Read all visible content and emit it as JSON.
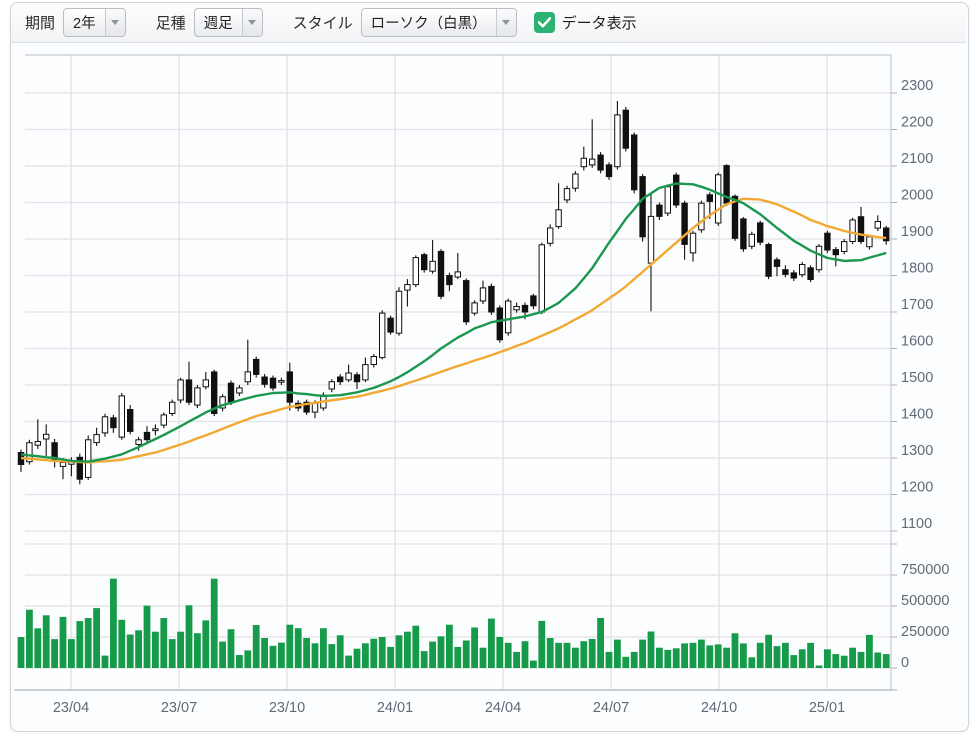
{
  "toolbar": {
    "period_label": "期間",
    "period_value": "2年",
    "bartype_label": "足種",
    "bartype_value": "週足",
    "style_label": "スタイル",
    "style_value": "ローソク（白黒）",
    "data_display_label": "データ表示",
    "data_display_checked": true
  },
  "colors": {
    "ma_short": "#1a9850",
    "ma_long": "#f2a832",
    "volume": "#169b4b",
    "candle_up_fill": "#ffffff",
    "candle_down_fill": "#111111",
    "candle_stroke": "#111111",
    "checkbox_green": "#2cb272",
    "grid": "#e2e3e6",
    "axis_border": "#c6cbd1",
    "axis_text": "#5f6b76"
  },
  "chart_data": {
    "type": "candlestick",
    "title": "",
    "x_labels": [
      "23/04",
      "23/07",
      "23/10",
      "24/01",
      "24/04",
      "24/07",
      "24/10",
      "25/01"
    ],
    "price_ticks": [
      2300,
      2200,
      2100,
      2000,
      1900,
      1800,
      1700,
      1600,
      1500,
      1400,
      1300,
      1200,
      1100
    ],
    "volume_ticks": [
      750000,
      500000,
      250000,
      0
    ],
    "price_range": [
      1100,
      2300
    ],
    "volume_range": [
      0,
      1000000
    ],
    "grid": true,
    "legend": "none",
    "series": [
      {
        "name": "price_ohlc",
        "type": "candlestick",
        "ohlc": [
          [
            1315,
            1323,
            1262,
            1282
          ],
          [
            1290,
            1350,
            1282,
            1342
          ],
          [
            1335,
            1406,
            1325,
            1345
          ],
          [
            1352,
            1392,
            1305,
            1365
          ],
          [
            1342,
            1352,
            1274,
            1296
          ],
          [
            1277,
            1300,
            1242,
            1288
          ],
          [
            1283,
            1302,
            1250,
            1290
          ],
          [
            1302,
            1312,
            1228,
            1242
          ],
          [
            1247,
            1362,
            1240,
            1350
          ],
          [
            1342,
            1383,
            1333,
            1364
          ],
          [
            1369,
            1421,
            1358,
            1413
          ],
          [
            1410,
            1418,
            1369,
            1383
          ],
          [
            1357,
            1478,
            1350,
            1470
          ],
          [
            1433,
            1445,
            1365,
            1373
          ],
          [
            1337,
            1358,
            1320,
            1350
          ],
          [
            1370,
            1387,
            1340,
            1350
          ],
          [
            1375,
            1392,
            1362,
            1380
          ],
          [
            1390,
            1425,
            1382,
            1418
          ],
          [
            1422,
            1460,
            1415,
            1453
          ],
          [
            1459,
            1520,
            1450,
            1514
          ],
          [
            1514,
            1564,
            1445,
            1453
          ],
          [
            1445,
            1500,
            1437,
            1492
          ],
          [
            1495,
            1536,
            1488,
            1514
          ],
          [
            1536,
            1542,
            1415,
            1422
          ],
          [
            1437,
            1475,
            1428,
            1468
          ],
          [
            1505,
            1512,
            1445,
            1453
          ],
          [
            1478,
            1500,
            1470,
            1492
          ],
          [
            1509,
            1624,
            1500,
            1536
          ],
          [
            1570,
            1578,
            1520,
            1529
          ],
          [
            1522,
            1530,
            1493,
            1502
          ],
          [
            1519,
            1526,
            1484,
            1492
          ],
          [
            1509,
            1520,
            1500,
            1512
          ],
          [
            1536,
            1561,
            1430,
            1453
          ],
          [
            1450,
            1458,
            1428,
            1437
          ],
          [
            1453,
            1460,
            1418,
            1426
          ],
          [
            1426,
            1458,
            1409,
            1450
          ],
          [
            1437,
            1480,
            1430,
            1472
          ],
          [
            1489,
            1516,
            1480,
            1509
          ],
          [
            1522,
            1530,
            1500,
            1509
          ],
          [
            1514,
            1556,
            1508,
            1533
          ],
          [
            1528,
            1535,
            1489,
            1509
          ],
          [
            1514,
            1575,
            1508,
            1556
          ],
          [
            1556,
            1585,
            1548,
            1578
          ],
          [
            1575,
            1705,
            1570,
            1697
          ],
          [
            1683,
            1690,
            1638,
            1645
          ],
          [
            1642,
            1768,
            1635,
            1757
          ],
          [
            1760,
            1790,
            1715,
            1775
          ],
          [
            1775,
            1855,
            1768,
            1849
          ],
          [
            1857,
            1862,
            1808,
            1816
          ],
          [
            1812,
            1897,
            1805,
            1839
          ],
          [
            1866,
            1872,
            1735,
            1743
          ],
          [
            1800,
            1808,
            1757,
            1775
          ],
          [
            1796,
            1862,
            1790,
            1810
          ],
          [
            1786,
            1792,
            1665,
            1673
          ],
          [
            1697,
            1732,
            1690,
            1725
          ],
          [
            1730,
            1786,
            1722,
            1766
          ],
          [
            1770,
            1778,
            1692,
            1700
          ],
          [
            1711,
            1718,
            1616,
            1624
          ],
          [
            1643,
            1737,
            1635,
            1730
          ],
          [
            1706,
            1726,
            1698,
            1715
          ],
          [
            1718,
            1726,
            1680,
            1700
          ],
          [
            1744,
            1750,
            1708,
            1717
          ],
          [
            1700,
            1890,
            1694,
            1884
          ],
          [
            1888,
            1940,
            1880,
            1930
          ],
          [
            1934,
            2053,
            1928,
            1980
          ],
          [
            2007,
            2046,
            1998,
            2038
          ],
          [
            2039,
            2086,
            2030,
            2078
          ],
          [
            2098,
            2153,
            2088,
            2121
          ],
          [
            2103,
            2228,
            2095,
            2119
          ],
          [
            2130,
            2138,
            2080,
            2089
          ],
          [
            2103,
            2110,
            2062,
            2071
          ],
          [
            2098,
            2278,
            2090,
            2240
          ],
          [
            2253,
            2262,
            2140,
            2149
          ],
          [
            2185,
            2192,
            2025,
            2035
          ],
          [
            2071,
            2078,
            1893,
            1906
          ],
          [
            1834,
            2026,
            1702,
            1962
          ],
          [
            1993,
            2000,
            1952,
            1962
          ],
          [
            1971,
            2050,
            1963,
            2043
          ],
          [
            2075,
            2082,
            1985,
            1993
          ],
          [
            1998,
            2005,
            1843,
            1885
          ],
          [
            1862,
            1922,
            1838,
            1916
          ],
          [
            1925,
            2005,
            1917,
            1998
          ],
          [
            2021,
            2028,
            1955,
            2003
          ],
          [
            1944,
            2082,
            1936,
            2076
          ],
          [
            2101,
            2105,
            1990,
            1998
          ],
          [
            2017,
            2022,
            1895,
            1902
          ],
          [
            1955,
            1960,
            1865,
            1873
          ],
          [
            1880,
            1920,
            1872,
            1913
          ],
          [
            1944,
            1950,
            1883,
            1891
          ],
          [
            1885,
            1890,
            1790,
            1798
          ],
          [
            1843,
            1850,
            1798,
            1825
          ],
          [
            1816,
            1828,
            1795,
            1803
          ],
          [
            1807,
            1815,
            1785,
            1793
          ],
          [
            1802,
            1837,
            1795,
            1830
          ],
          [
            1821,
            1828,
            1782,
            1789
          ],
          [
            1816,
            1886,
            1808,
            1880
          ],
          [
            1916,
            1922,
            1862,
            1870
          ],
          [
            1871,
            1878,
            1825,
            1857
          ],
          [
            1866,
            1900,
            1858,
            1893
          ],
          [
            1893,
            1958,
            1886,
            1952
          ],
          [
            1961,
            1988,
            1886,
            1893
          ],
          [
            1879,
            1912,
            1871,
            1906
          ],
          [
            1930,
            1965,
            1922,
            1948
          ],
          [
            1930,
            1936,
            1884,
            1895
          ]
        ]
      },
      {
        "name": "ma_short",
        "type": "line",
        "values": [
          1310,
          1307,
          1305,
          1302,
          1300,
          1296,
          1292,
          1291,
          1290,
          1294,
          1298,
          1304,
          1310,
          1320,
          1330,
          1341,
          1352,
          1363,
          1375,
          1387,
          1400,
          1412,
          1425,
          1435,
          1445,
          1451,
          1458,
          1464,
          1470,
          1474,
          1478,
          1479,
          1480,
          1477,
          1475,
          1472,
          1470,
          1471,
          1472,
          1476,
          1480,
          1486,
          1492,
          1501,
          1510,
          1522,
          1535,
          1550,
          1565,
          1582,
          1600,
          1615,
          1630,
          1642,
          1655,
          1663,
          1672,
          1676,
          1680,
          1684,
          1688,
          1694,
          1700,
          1712,
          1725,
          1745,
          1765,
          1792,
          1820,
          1855,
          1890,
          1922,
          1955,
          1982,
          2010,
          2025,
          2040,
          2046,
          2052,
          2051,
          2050,
          2043,
          2035,
          2025,
          2015,
          2007,
          1998,
          1983,
          1968,
          1949,
          1930,
          1913,
          1895,
          1882,
          1868,
          1858,
          1848,
          1844,
          1840,
          1841,
          1842,
          1849,
          1855,
          1862
        ]
      },
      {
        "name": "ma_long",
        "type": "line",
        "values": [
          1300,
          1298,
          1296,
          1294,
          1292,
          1291,
          1290,
          1289,
          1288,
          1290,
          1291,
          1293,
          1295,
          1300,
          1305,
          1310,
          1315,
          1322,
          1330,
          1337,
          1345,
          1354,
          1362,
          1371,
          1380,
          1389,
          1398,
          1406,
          1415,
          1421,
          1427,
          1434,
          1440,
          1444,
          1448,
          1451,
          1455,
          1458,
          1461,
          1465,
          1468,
          1473,
          1479,
          1484,
          1490,
          1497,
          1505,
          1512,
          1520,
          1528,
          1536,
          1544,
          1552,
          1559,
          1567,
          1574,
          1582,
          1590,
          1598,
          1607,
          1615,
          1625,
          1635,
          1645,
          1655,
          1667,
          1680,
          1692,
          1705,
          1721,
          1737,
          1753,
          1770,
          1790,
          1810,
          1830,
          1850,
          1870,
          1890,
          1910,
          1930,
          1948,
          1965,
          1980,
          1995,
          2003,
          2010,
          2009,
          2008,
          2002,
          1995,
          1985,
          1975,
          1964,
          1952,
          1944,
          1935,
          1929,
          1922,
          1917,
          1912,
          1909,
          1905,
          1903
        ]
      },
      {
        "name": "volume",
        "type": "bar",
        "values": [
          250000,
          470000,
          320000,
          425000,
          233000,
          412000,
          233000,
          378000,
          403000,
          483000,
          100000,
          720000,
          389000,
          270000,
          304000,
          503000,
          293000,
          403000,
          233000,
          293000,
          506000,
          281000,
          384000,
          720000,
          213000,
          313000,
          105000,
          142000,
          347000,
          242000,
          179000,
          205000,
          349000,
          321000,
          242000,
          199000,
          321000,
          193000,
          264000,
          100000,
          156000,
          199000,
          236000,
          250000,
          170000,
          264000,
          293000,
          341000,
          136000,
          213000,
          256000,
          349000,
          170000,
          222000,
          327000,
          164000,
          398000,
          250000,
          203000,
          130000,
          216000,
          60000,
          380000,
          242000,
          203000,
          203000,
          164000,
          216000,
          234000,
          404000,
          130000,
          229000,
          90000,
          130000,
          229000,
          294000,
          164000,
          146000,
          159000,
          198000,
          203000,
          229000,
          182000,
          190000,
          164000,
          280000,
          198000,
          86000,
          203000,
          268000,
          177000,
          203000,
          104000,
          151000,
          203000,
          20000,
          151000,
          112000,
          99000,
          164000,
          130000,
          268000,
          125000,
          112000
        ]
      }
    ]
  }
}
